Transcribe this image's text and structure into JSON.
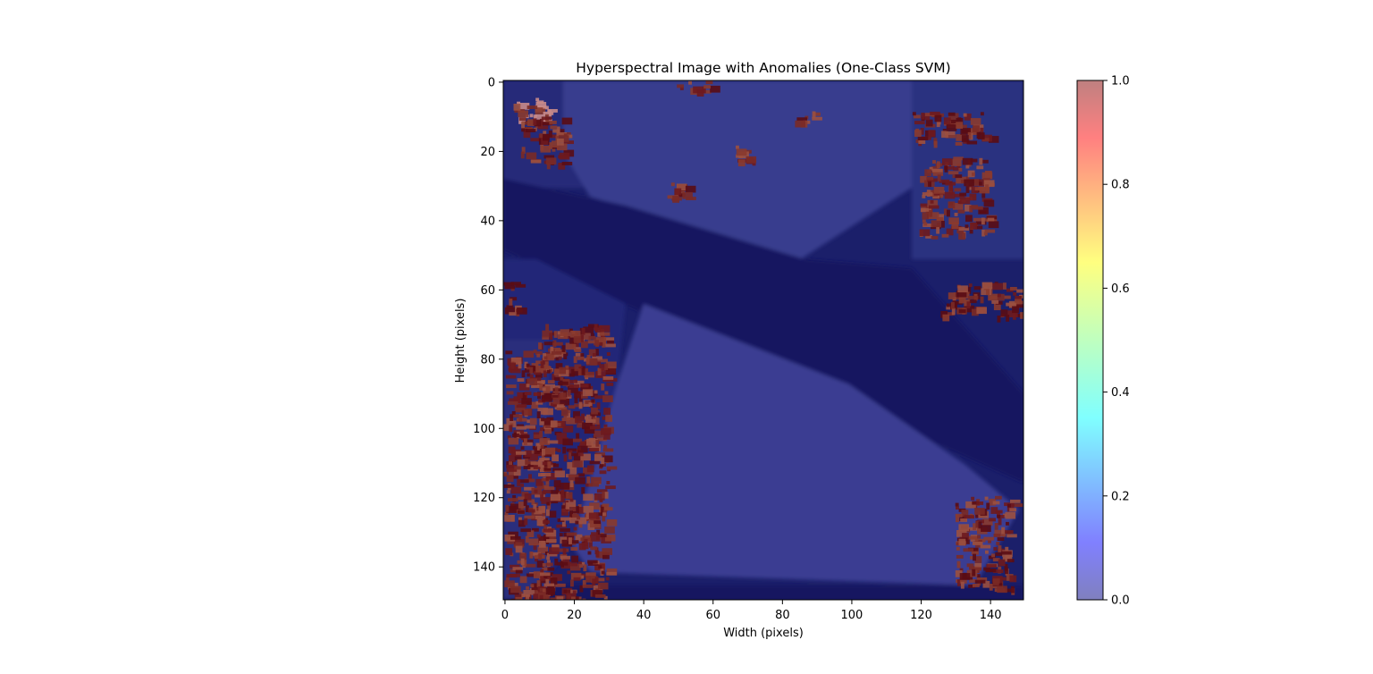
{
  "chart_data": {
    "type": "heatmap",
    "title": "Hyperspectral Image with Anomalies (One-Class SVM)",
    "xlabel": "Width (pixels)",
    "ylabel": "Height (pixels)",
    "xlim": [
      -0.5,
      149.5
    ],
    "ylim": [
      149.5,
      -0.5
    ],
    "image_size": [
      150,
      150
    ],
    "x_ticks": [
      0,
      20,
      40,
      60,
      80,
      100,
      120,
      140
    ],
    "y_ticks": [
      0,
      20,
      40,
      60,
      80,
      100,
      120,
      140
    ],
    "colorbar": {
      "colormap": "jet",
      "alpha": 0.5,
      "range": [
        0.0,
        1.0
      ],
      "ticks": [
        "0.0",
        "0.2",
        "0.4",
        "0.6",
        "0.8",
        "1.0"
      ]
    },
    "anomaly_regions": [
      {
        "x": [
          2,
          13
        ],
        "y": [
          5,
          12
        ],
        "note": "upper-left bright strip"
      },
      {
        "x": [
          5,
          18
        ],
        "y": [
          10,
          24
        ]
      },
      {
        "x": [
          50,
          60
        ],
        "y": [
          0,
          3
        ]
      },
      {
        "x": [
          84,
          90
        ],
        "y": [
          8,
          12
        ]
      },
      {
        "x": [
          66,
          72
        ],
        "y": [
          18,
          23
        ]
      },
      {
        "x": [
          47,
          53
        ],
        "y": [
          29,
          35
        ]
      },
      {
        "x": [
          118,
          140
        ],
        "y": [
          9,
          18
        ]
      },
      {
        "x": [
          120,
          140
        ],
        "y": [
          22,
          45
        ]
      },
      {
        "x": [
          0,
          4
        ],
        "y": [
          58,
          68
        ]
      },
      {
        "x": [
          0,
          17
        ],
        "y": [
          77,
          84
        ]
      },
      {
        "x": [
          0,
          12
        ],
        "y": [
          84,
          150
        ]
      },
      {
        "x": [
          10,
          30
        ],
        "y": [
          70,
          150
        ]
      },
      {
        "x": [
          130,
          147
        ],
        "y": [
          120,
          147
        ]
      },
      {
        "x": [
          126,
          149
        ],
        "y": [
          58,
          68
        ]
      }
    ],
    "grid": false
  }
}
